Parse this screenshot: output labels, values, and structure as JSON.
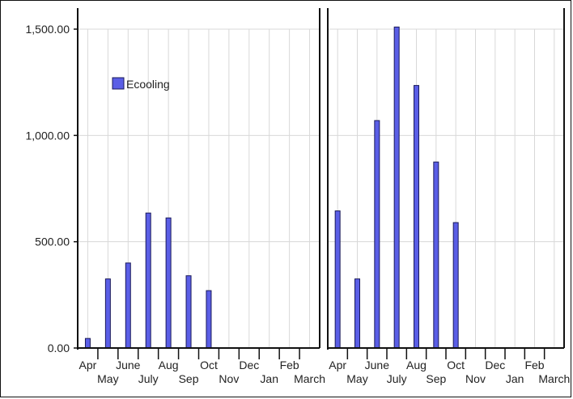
{
  "chart_data": [
    {
      "type": "bar",
      "categories": [
        "Apr",
        "May",
        "June",
        "July",
        "Aug",
        "Sep",
        "Oct",
        "Nov",
        "Dec",
        "Jan",
        "Feb",
        "March"
      ],
      "series": [
        {
          "name": "Ecooling",
          "values": [
            45,
            325,
            400,
            635,
            612,
            340,
            270,
            0,
            0,
            0,
            0,
            0
          ]
        }
      ],
      "ylim": [
        0,
        1500
      ],
      "yticks": [
        "0.00",
        "500.00",
        "1,000.00",
        "1,500.00"
      ],
      "grid": true,
      "legend": "top-left"
    },
    {
      "type": "bar",
      "categories": [
        "Apr",
        "May",
        "June",
        "July",
        "Aug",
        "Sep",
        "Oct",
        "Nov",
        "Dec",
        "Jan",
        "Feb",
        "March"
      ],
      "series": [
        {
          "values": [
            645,
            325,
            1070,
            1510,
            1235,
            875,
            590,
            0,
            0,
            0,
            0,
            0
          ]
        }
      ],
      "ylim": [
        0,
        1500
      ],
      "grid": true
    }
  ],
  "colors": {
    "bar_fill": "#5a5ee6",
    "bar_stroke": "#1a1a5a",
    "grid": "#d8d8d8",
    "axis": "#111111"
  }
}
